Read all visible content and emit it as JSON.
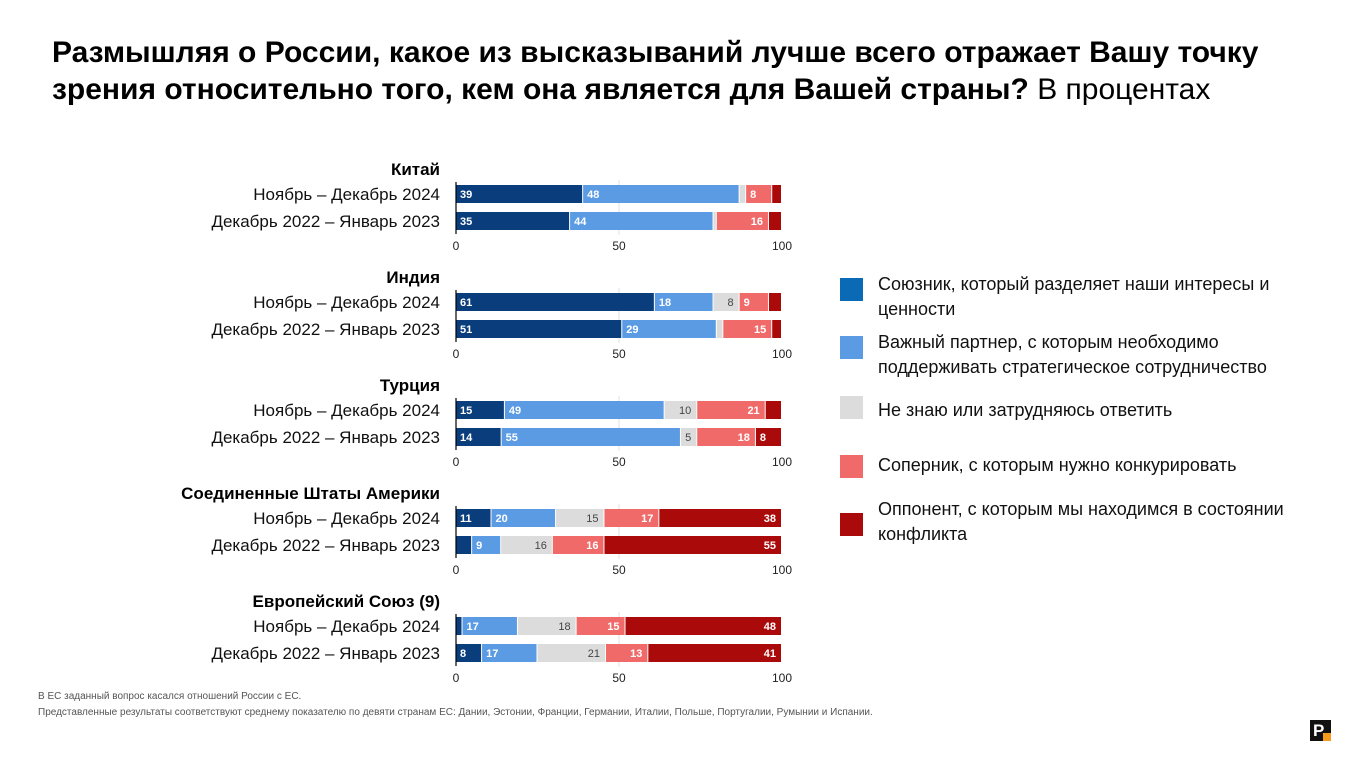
{
  "title": {
    "bold": "Размышляя о России, какое из высказываний лучше всего отражает Вашу точку зрения относительно того, кем она является для Вашей страны?",
    "light": " В процентах"
  },
  "chart_data": {
    "type": "bar",
    "orientation": "horizontal",
    "stacked": true,
    "xlim": [
      0,
      100
    ],
    "ticks": [
      "0",
      "50",
      "100"
    ],
    "series": [
      {
        "name": "Союзник, который разделяет наши интересы и ценности",
        "color": "#0a3d7c"
      },
      {
        "name": "Важный партнер, с которым необходимо поддерживать стратегическое сотрудничество",
        "color": "#5b9be3"
      },
      {
        "name": "Не знаю или затрудняюсь ответить",
        "color": "#dcdcdc"
      },
      {
        "name": "Соперник, с которым нужно конкурировать",
        "color": "#f06a6a"
      },
      {
        "name": "Оппонент, с которым мы находимся в состоянии конфликта",
        "color": "#aa0a0a"
      }
    ],
    "groups": [
      {
        "name": "Китай",
        "rows": [
          {
            "label": "Ноябрь – Декабрь 2024",
            "values": [
              39,
              48,
              2,
              8,
              3
            ],
            "labels": [
              "39",
              "48",
              "",
              "8",
              ""
            ]
          },
          {
            "label": "Декабрь 2022 – Январь 2023",
            "values": [
              35,
              44,
              1,
              16,
              4
            ],
            "labels": [
              "35",
              "44",
              "",
              "16",
              ""
            ]
          }
        ]
      },
      {
        "name": "Индия",
        "rows": [
          {
            "label": "Ноябрь – Декабрь 2024",
            "values": [
              61,
              18,
              8,
              9,
              4
            ],
            "labels": [
              "61",
              "18",
              "8",
              "9",
              ""
            ]
          },
          {
            "label": "Декабрь 2022 – Январь 2023",
            "values": [
              51,
              29,
              2,
              15,
              3
            ],
            "labels": [
              "51",
              "29",
              "",
              "15",
              ""
            ]
          }
        ]
      },
      {
        "name": "Турция",
        "rows": [
          {
            "label": "Ноябрь – Декабрь 2024",
            "values": [
              15,
              49,
              10,
              21,
              5
            ],
            "labels": [
              "15",
              "49",
              "10",
              "21",
              ""
            ]
          },
          {
            "label": "Декабрь 2022 – Январь 2023",
            "values": [
              14,
              55,
              5,
              18,
              8
            ],
            "labels": [
              "14",
              "55",
              "5",
              "18",
              "8"
            ]
          }
        ]
      },
      {
        "name": "Соединенные Штаты Америки",
        "rows": [
          {
            "label": "Ноябрь – Декабрь 2024",
            "values": [
              11,
              20,
              15,
              17,
              38
            ],
            "labels": [
              "11",
              "20",
              "15",
              "17",
              "38"
            ]
          },
          {
            "label": "Декабрь 2022 – Январь 2023",
            "values": [
              5,
              9,
              16,
              16,
              55
            ],
            "labels": [
              "",
              "9",
              "16",
              "16",
              "55"
            ]
          }
        ]
      },
      {
        "name": "Европейский Союз (9)",
        "rows": [
          {
            "label": "Ноябрь – Декабрь 2024",
            "values": [
              2,
              17,
              18,
              15,
              48
            ],
            "labels": [
              "",
              "17",
              "18",
              "15",
              "48"
            ]
          },
          {
            "label": "Декабрь 2022 – Январь 2023",
            "values": [
              8,
              17,
              21,
              13,
              41
            ],
            "labels": [
              "8",
              "17",
              "21",
              "13",
              "41"
            ]
          }
        ]
      }
    ]
  },
  "legend": [
    {
      "label": "Союзник, который разделяет наши интересы и ценности",
      "color": "#0a6ab5"
    },
    {
      "label": "Важный партнер, с которым необходимо поддерживать стратегическое сотрудничество",
      "color": "#5b9be3"
    },
    {
      "label": "Не знаю или затрудняюсь ответить",
      "color": "#dcdcdc"
    },
    {
      "label": "Соперник, с которым нужно конкурировать",
      "color": "#f06a6a"
    },
    {
      "label": "Оппонент, с которым мы находимся в состоянии конфликта",
      "color": "#aa0a0a"
    }
  ],
  "footnotes": [
    "В ЕС заданный вопрос касался отношений России с ЕС.",
    "Представленные результаты соответствуют среднему показателю по девяти странам ЕС: Дании, Эстонии, Франции, Германии, Италии, Польше, Португалии, Румынии и Испании."
  ],
  "logo": {
    "letter": "P",
    "icon": "brand-logo-icon",
    "accent": "#f79b1c"
  }
}
